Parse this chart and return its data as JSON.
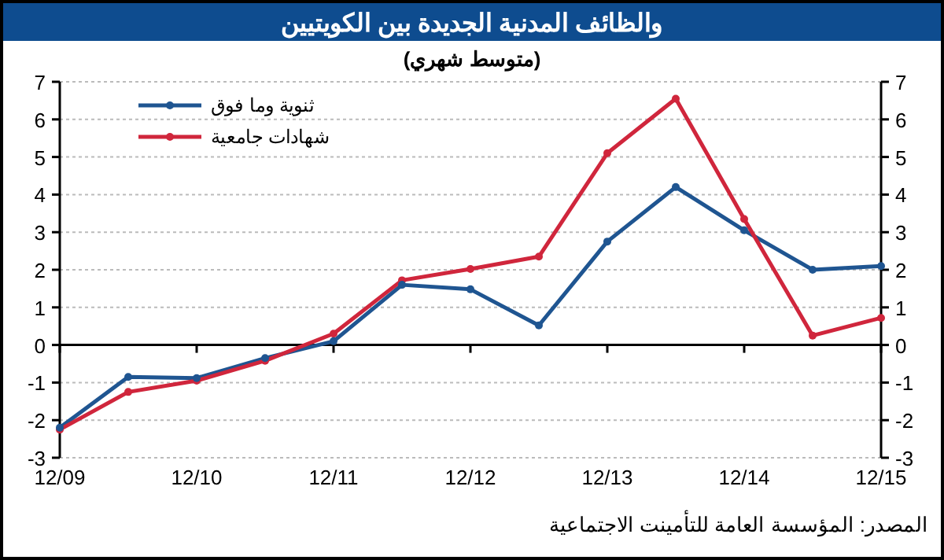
{
  "chart_data": {
    "type": "line",
    "title": "والظائف المدنية الجديدة بين الكويتيين",
    "subtitle": "(متوسط شهري)",
    "annotations": [
      "المصدر: المؤسسة العامة للتأمينت الاجتماعية"
    ],
    "categories": [
      "12/09",
      null,
      "12/10",
      null,
      "12/11",
      null,
      "12/12",
      null,
      "12/13",
      null,
      "12/14",
      null,
      "12/15"
    ],
    "series": [
      {
        "name": "ثنوية وما فوق",
        "color": "#1f5591",
        "values": [
          -2.2,
          -0.85,
          -0.88,
          -0.35,
          0.1,
          1.6,
          1.48,
          0.52,
          2.75,
          4.2,
          3.05,
          2.0,
          2.1
        ]
      },
      {
        "name": "شهادات جامعية",
        "color": "#d0263c",
        "values": [
          -2.25,
          -1.25,
          -0.95,
          -0.42,
          0.3,
          1.72,
          2.02,
          2.35,
          5.1,
          6.55,
          3.35,
          0.25,
          0.72
        ]
      }
    ],
    "ylim": [
      -3,
      7
    ],
    "yticks": [
      -3,
      -2,
      -1,
      0,
      1,
      2,
      3,
      4,
      5,
      6,
      7
    ],
    "y2lim": [
      -3,
      7
    ],
    "y2ticks": [
      -3,
      -2,
      -1,
      0,
      1,
      2,
      3,
      4,
      5,
      6,
      7
    ],
    "grid": "y",
    "legend": "top left",
    "marker": "circle",
    "line_style": "solid"
  }
}
